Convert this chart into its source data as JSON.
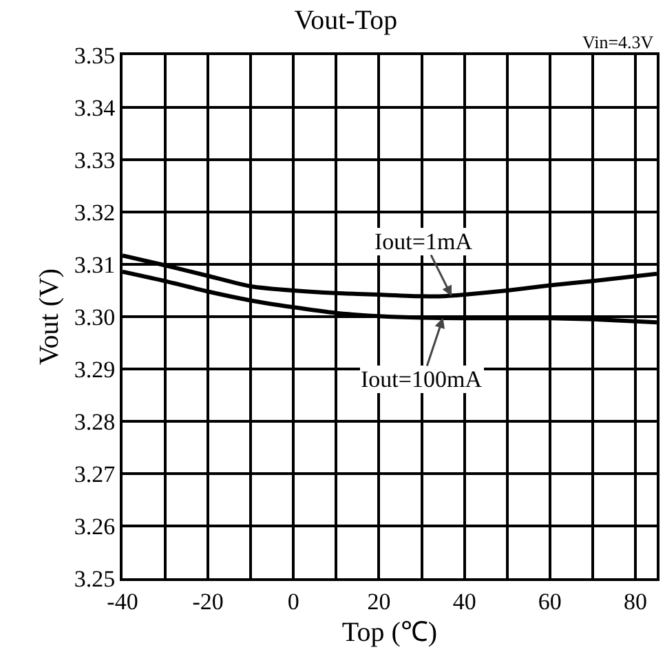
{
  "chart_data": {
    "type": "line",
    "title": "Vout-Top",
    "xlabel": "Top (℃)",
    "ylabel": "Vout (V)",
    "annotations": [
      "Vin=4.3V",
      {
        "text": "Iout=1mA",
        "x": 37,
        "y": 3.3039
      },
      {
        "text": "Iout=100mA",
        "x": 35,
        "y": 3.2998
      }
    ],
    "xlim": [
      -40,
      85
    ],
    "xticks": [
      -40,
      {
        "value": -30,
        "label": null
      },
      -20,
      {
        "value": -10,
        "label": null
      },
      0,
      {
        "value": 10,
        "label": null
      },
      20,
      {
        "value": 30,
        "label": null
      },
      40,
      {
        "value": 50,
        "label": null
      },
      60,
      {
        "value": 70,
        "label": null
      },
      80
    ],
    "ylim": [
      3.25,
      3.35
    ],
    "yticks": [
      3.25,
      3.26,
      3.27,
      3.28,
      3.29,
      {
        "value": 3.3,
        "label": "3.30"
      },
      3.31,
      3.32,
      3.33,
      3.34,
      3.35
    ],
    "grid": true,
    "marker": "none",
    "line_style": "solid",
    "series": [
      {
        "color": "#000000",
        "x": [
          -40,
          -30,
          -20,
          -10,
          0,
          10,
          20,
          30,
          35,
          40,
          50,
          60,
          70,
          85
        ],
        "values": [
          3.3117,
          3.3098,
          3.3078,
          3.3058,
          3.305,
          3.3045,
          3.3042,
          3.3039,
          3.3039,
          3.3042,
          3.305,
          3.306,
          3.3068,
          3.3082
        ]
      },
      {
        "color": "#000000",
        "x": [
          -40,
          -30,
          -20,
          -10,
          0,
          10,
          20,
          30,
          40,
          50,
          60,
          70,
          85
        ],
        "values": [
          3.3086,
          3.3068,
          3.3048,
          3.3031,
          3.3018,
          3.3007,
          3.3001,
          3.2998,
          3.2997,
          3.2997,
          3.2997,
          3.2995,
          3.2989
        ]
      }
    ]
  }
}
